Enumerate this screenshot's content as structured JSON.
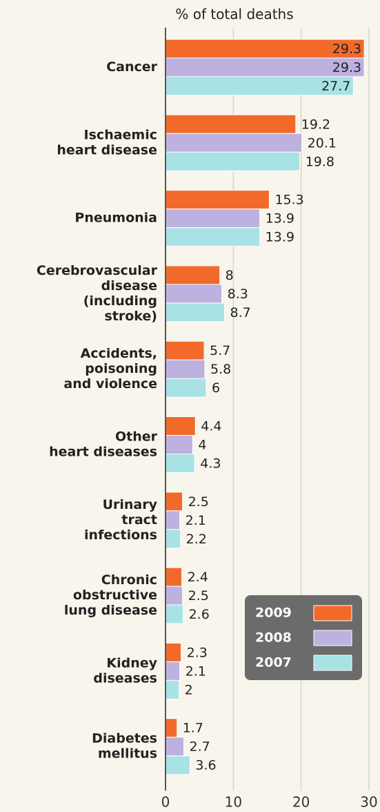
{
  "chart_data": {
    "type": "bar",
    "orientation": "horizontal",
    "x_label": "% of total deaths",
    "categories": [
      [
        "Cancer"
      ],
      [
        "Ischaemic",
        "heart disease"
      ],
      [
        "Pneumonia"
      ],
      [
        "Cerebrovascular",
        "disease",
        "(including",
        "stroke)"
      ],
      [
        "Accidents,",
        "poisoning",
        "and violence"
      ],
      [
        "Other",
        "heart diseases"
      ],
      [
        "Urinary",
        "tract",
        "infections"
      ],
      [
        "Chronic",
        "obstructive",
        "lung disease"
      ],
      [
        "Kidney",
        "diseases"
      ],
      [
        "Diabetes",
        "mellitus"
      ]
    ],
    "series": [
      {
        "name": "2009",
        "color": "#f26a2a",
        "values": [
          29.3,
          19.2,
          15.3,
          8,
          5.7,
          4.4,
          2.5,
          2.4,
          2.3,
          1.7
        ]
      },
      {
        "name": "2008",
        "color": "#bdb1e0",
        "values": [
          29.3,
          20.1,
          13.9,
          8.3,
          5.8,
          4,
          2.1,
          2.5,
          2.1,
          2.7
        ]
      },
      {
        "name": "2007",
        "color": "#a9e2e4",
        "values": [
          27.7,
          19.8,
          13.9,
          8.7,
          6,
          4.3,
          2.2,
          2.6,
          2,
          3.6
        ]
      }
    ],
    "xlim": [
      0,
      30
    ],
    "xticks": [
      0,
      10,
      20,
      30
    ],
    "grid": true,
    "legend": "lower right"
  }
}
